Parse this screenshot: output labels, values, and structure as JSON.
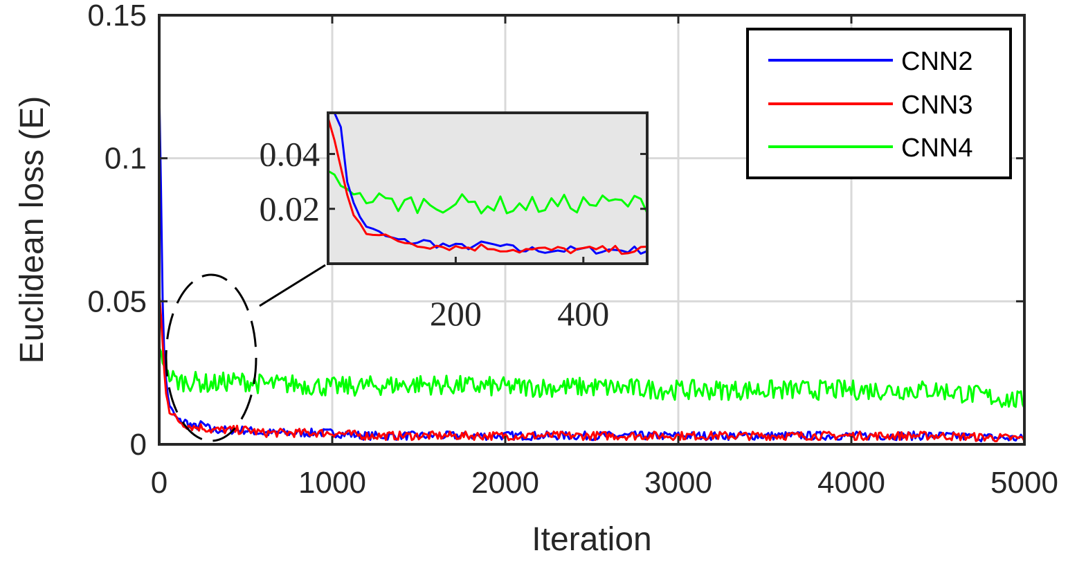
{
  "chart_data": {
    "type": "line",
    "title": "",
    "xlabel": "Iteration",
    "ylabel": "Euclidean loss (E)",
    "xlim": [
      0,
      5000
    ],
    "ylim": [
      0,
      0.15
    ],
    "xticks": [
      0,
      1000,
      2000,
      3000,
      4000,
      5000
    ],
    "xtick_labels": [
      "0",
      "1000",
      "2000",
      "3000",
      "4000",
      "5000"
    ],
    "yticks": [
      0,
      0.05,
      0.1,
      0.15
    ],
    "ytick_labels": [
      "0",
      "0.05",
      "0.1",
      "0.15"
    ],
    "grid": true,
    "legend": {
      "location": "top-right",
      "entries": [
        "CNN2",
        "CNN3",
        "CNN4"
      ]
    },
    "colors": {
      "CNN2": "#0000ff",
      "CNN3": "#ff0000",
      "CNN4": "#00ff00",
      "inset_bg": "#e6e6e6",
      "grid": "#d9d9d9"
    },
    "series": [
      {
        "name": "CNN2",
        "x": [
          0,
          10,
          20,
          30,
          40,
          50,
          60,
          70,
          80,
          100,
          120,
          150,
          200,
          250,
          300,
          350,
          400,
          500,
          600,
          700,
          800,
          1000,
          1200,
          1500,
          1800,
          2000,
          2500,
          3000,
          3500,
          4000,
          4500,
          5000
        ],
        "values": [
          0.125,
          0.09,
          0.05,
          0.03,
          0.022,
          0.017,
          0.014,
          0.012,
          0.011,
          0.009,
          0.008,
          0.008,
          0.006,
          0.007,
          0.005,
          0.005,
          0.005,
          0.005,
          0.004,
          0.004,
          0.004,
          0.004,
          0.003,
          0.003,
          0.003,
          0.003,
          0.003,
          0.003,
          0.003,
          0.003,
          0.003,
          0.002
        ]
      },
      {
        "name": "CNN3",
        "x": [
          0,
          10,
          20,
          30,
          40,
          50,
          60,
          70,
          80,
          100,
          120,
          150,
          200,
          250,
          300,
          350,
          400,
          500,
          600,
          700,
          800,
          1000,
          1200,
          1500,
          1800,
          2000,
          2500,
          3000,
          3500,
          4000,
          4500,
          5000
        ],
        "values": [
          0.053,
          0.045,
          0.035,
          0.025,
          0.018,
          0.015,
          0.012,
          0.011,
          0.01,
          0.009,
          0.008,
          0.007,
          0.006,
          0.006,
          0.005,
          0.005,
          0.005,
          0.005,
          0.004,
          0.004,
          0.004,
          0.004,
          0.003,
          0.003,
          0.003,
          0.003,
          0.003,
          0.003,
          0.003,
          0.003,
          0.003,
          0.002
        ]
      },
      {
        "name": "CNN4",
        "x": [
          0,
          10,
          20,
          40,
          60,
          80,
          100,
          200,
          300,
          400,
          500,
          600,
          800,
          1000,
          1500,
          2000,
          2500,
          3000,
          3500,
          4000,
          4500,
          5000
        ],
        "values": [
          0.033,
          0.032,
          0.029,
          0.026,
          0.024,
          0.023,
          0.022,
          0.022,
          0.021,
          0.022,
          0.022,
          0.021,
          0.021,
          0.02,
          0.021,
          0.02,
          0.02,
          0.019,
          0.019,
          0.019,
          0.019,
          0.015
        ]
      }
    ],
    "inset": {
      "xlim": [
        0,
        500
      ],
      "ylim": [
        0,
        0.055
      ],
      "xticks": [
        200,
        400
      ],
      "xtick_labels": [
        "200",
        "400"
      ],
      "yticks": [
        0.02,
        0.04
      ],
      "ytick_labels": [
        "0.02",
        "0.04"
      ]
    }
  }
}
